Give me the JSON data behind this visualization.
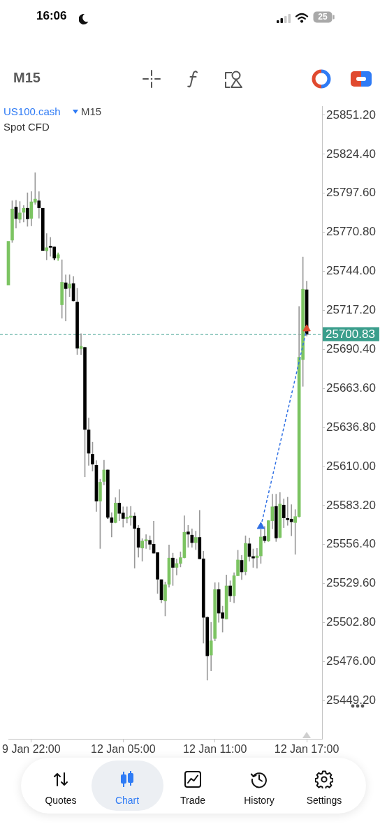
{
  "chart_data": {
    "type": "candlestick",
    "title": "US100.cash",
    "subtitle": "Spot CFD",
    "annotations": [
      "16:06",
      "25",
      "M15",
      "M15",
      "Quotes",
      "Chart",
      "Trade",
      "History",
      "Settings"
    ],
    "categories": [
      null,
      null,
      null,
      null,
      null,
      null,
      "9 Jan 22:00",
      null,
      null,
      null,
      null,
      null,
      null,
      null,
      null,
      null,
      null,
      null,
      null,
      null,
      null,
      null,
      null,
      null,
      null,
      null,
      null,
      null,
      null,
      null,
      "12 Jan 05:00",
      null,
      null,
      null,
      null,
      null,
      null,
      null,
      null,
      null,
      null,
      null,
      null,
      null,
      null,
      null,
      null,
      null,
      null,
      null,
      null,
      null,
      null,
      null,
      "12 Jan 11:00",
      null,
      null,
      null,
      null,
      null,
      null,
      null,
      null,
      null,
      null,
      null,
      null,
      null,
      null,
      null,
      null,
      null,
      null,
      null,
      null,
      null,
      null,
      null,
      "12 Jan 17:00",
      null,
      null,
      null,
      null
    ],
    "ohlc": [
      [
        25734.6,
        25764.6,
        25734.6,
        25764.6
      ],
      [
        25765.4,
        25792.4,
        25763.8,
        25786.8
      ],
      [
        25788.1,
        25792.7,
        25773.7,
        25780.2
      ],
      [
        25779.7,
        25791.9,
        25777.3,
        25784.1
      ],
      [
        25784.5,
        25789.2,
        25777.8,
        25787.3
      ],
      [
        25787.3,
        25797.9,
        25774.9,
        25780.0
      ],
      [
        25780.3,
        25798.7,
        25775.2,
        25791.7
      ],
      [
        25791.4,
        25811.7,
        25790.0,
        25793.6
      ],
      [
        25792.4,
        25798.7,
        25780.5,
        25787.6
      ],
      [
        25787.3,
        25787.3,
        25758.3,
        25758.3
      ],
      [
        25758.1,
        25769.9,
        25751.9,
        25760.2
      ],
      [
        25760.6,
        25767.3,
        25754.3,
        25760.4
      ],
      [
        25760.7,
        25760.7,
        25751.9,
        25753.1
      ],
      [
        25753.1,
        25756.7,
        25751.4,
        25755.4
      ],
      [
        25721.0,
        25751.9,
        25711.8,
        25736.4
      ],
      [
        25736.1,
        25741.6,
        25709.9,
        25732.1
      ],
      [
        25732.4,
        25741.6,
        25726.6,
        25735.3
      ],
      [
        25735.6,
        25740.5,
        25723.4,
        25723.7
      ],
      [
        25722.9,
        25732.4,
        25686.9,
        25691.2
      ],
      [
        25690.9,
        25701.2,
        25686.9,
        25692.5
      ],
      [
        25691.7,
        25692.0,
        25602.9,
        25635.4
      ],
      [
        25635.1,
        25643.3,
        25610.8,
        25619.1
      ],
      [
        25618.4,
        25626.7,
        25606.8,
        25611.6
      ],
      [
        25610.8,
        25614.0,
        25579.1,
        25586.2
      ],
      [
        25586.2,
        25601.3,
        25553.7,
        25599.2
      ],
      [
        25599.7,
        25614.3,
        25597.3,
        25607.6
      ],
      [
        25607.6,
        25607.6,
        25574.3,
        25575.1
      ],
      [
        25574.8,
        25578.3,
        25561.6,
        25571.5
      ],
      [
        25571.5,
        25588.6,
        25571.2,
        25584.9
      ],
      [
        25584.9,
        25594.2,
        25572.8,
        25577.8
      ],
      [
        25578.1,
        25582.3,
        25568.3,
        25574.3
      ],
      [
        25574.3,
        25582.3,
        25571.2,
        25575.1
      ],
      [
        25575.0,
        25582.6,
        25569.6,
        25575.9
      ],
      [
        25575.9,
        25578.3,
        25540.2,
        25567.5
      ],
      [
        25567.7,
        25569.6,
        25547.7,
        25554.5
      ],
      [
        25554.0,
        25560.4,
        25545.0,
        25558.8
      ],
      [
        25558.8,
        25563.2,
        25553.7,
        25559.7
      ],
      [
        25559.3,
        25562.4,
        25552.9,
        25556.6
      ],
      [
        25556.6,
        25572.4,
        25550.5,
        25550.5
      ],
      [
        25550.9,
        25550.9,
        25522.8,
        25532.6
      ],
      [
        25532.3,
        25532.3,
        25516.4,
        25518.5
      ],
      [
        25517.7,
        25530.7,
        25507.4,
        25528.8
      ],
      [
        25529.1,
        25556.1,
        25527.1,
        25547.1
      ],
      [
        25547.1,
        25550.5,
        25528.3,
        25540.7
      ],
      [
        25540.7,
        25546.6,
        25535.5,
        25543.4
      ],
      [
        25543.4,
        25551.4,
        25541.0,
        25547.4
      ],
      [
        25547.4,
        25576.2,
        25547.1,
        25564.8
      ],
      [
        25565.1,
        25569.6,
        25554.5,
        25563.5
      ],
      [
        25562.9,
        25567.2,
        25554.5,
        25557.7
      ],
      [
        25557.7,
        25565.6,
        25552.9,
        25561.3
      ],
      [
        25561.3,
        25579.9,
        25546.6,
        25546.6
      ],
      [
        25546.6,
        25551.8,
        25488.7,
        25506.4
      ],
      [
        25506.4,
        25506.9,
        25463.3,
        25480.0
      ],
      [
        25480.5,
        25503.0,
        25469.7,
        25490.3
      ],
      [
        25491.9,
        25530.2,
        25490.3,
        25525.5
      ],
      [
        25525.5,
        25530.2,
        25503.0,
        25509.3
      ],
      [
        25509.6,
        25514.1,
        25496.3,
        25505.8
      ],
      [
        25505.3,
        25535.5,
        25505.3,
        25528.0
      ],
      [
        25528.0,
        25531.5,
        25517.2,
        25521.2
      ],
      [
        25521.2,
        25537.1,
        25516.4,
        25535.0
      ],
      [
        25535.0,
        25552.5,
        25535.0,
        25545.8
      ],
      [
        25545.5,
        25549.0,
        25532.3,
        25537.6
      ],
      [
        25537.8,
        25562.4,
        25535.5,
        25557.2
      ],
      [
        25556.9,
        25560.9,
        25545.0,
        25548.2
      ],
      [
        25548.2,
        25553.4,
        25540.7,
        25547.1
      ],
      [
        25547.4,
        25553.7,
        25540.2,
        25548.6
      ],
      [
        25548.6,
        25566.7,
        25543.4,
        25561.6
      ],
      [
        25562.0,
        25568.8,
        25557.7,
        25559.1
      ],
      [
        25558.8,
        25572.8,
        25558.5,
        25572.8
      ],
      [
        25572.8,
        25591.0,
        25567.2,
        25582.3
      ],
      [
        25582.6,
        25591.0,
        25558.5,
        25560.9
      ],
      [
        25561.3,
        25592.1,
        25560.9,
        25584.2
      ],
      [
        25583.5,
        25587.8,
        25568.0,
        25574.7
      ],
      [
        25574.3,
        25588.9,
        25569.6,
        25573.4
      ],
      [
        25573.9,
        25583.8,
        25562.4,
        25572.0
      ],
      [
        25571.5,
        25580.4,
        25549.7,
        25575.6
      ],
      [
        25575.6,
        25719.9,
        25575.1,
        25685.0
      ],
      [
        25683.4,
        25753.8,
        25665.0,
        25731.7
      ],
      [
        25731.3,
        25737.2,
        25699.6,
        25700.83
      ],
      null,
      null,
      null,
      null
    ],
    "colors": [
      "#7cc462",
      "#7cc462",
      "#000000",
      "#7cc462",
      "#7cc462",
      "#000000",
      "#7cc462",
      "#7cc462",
      "#000000",
      "#000000",
      "#7cc462",
      "#000000",
      "#000000",
      "#7cc462",
      "#7cc462",
      "#000000",
      "#7cc462",
      "#000000",
      "#000000",
      "#7cc462",
      "#000000",
      "#000000",
      "#000000",
      "#000000",
      "#7cc462",
      "#7cc462",
      "#000000",
      "#000000",
      "#7cc462",
      "#000000",
      "#000000",
      "#7cc462",
      "#7cc462",
      "#000000",
      "#000000",
      "#7cc462",
      "#7cc462",
      "#000000",
      "#000000",
      "#000000",
      "#000000",
      "#7cc462",
      "#7cc462",
      "#000000",
      "#7cc462",
      "#7cc462",
      "#7cc462",
      "#000000",
      "#000000",
      "#7cc462",
      "#000000",
      "#000000",
      "#000000",
      "#7cc462",
      "#7cc462",
      "#000000",
      "#000000",
      "#7cc462",
      "#000000",
      "#7cc462",
      "#7cc462",
      "#000000",
      "#7cc462",
      "#000000",
      "#000000",
      "#7cc462",
      "#7cc462",
      "#000000",
      "#7cc462",
      "#7cc462",
      "#000000",
      "#7cc462",
      "#000000",
      "#000000",
      "#000000",
      "#7cc462",
      "#7cc462",
      "#7cc462",
      "#000000",
      null,
      null,
      null,
      null
    ],
    "series": [
      {
        "type": "line",
        "color": "#2f6fe4",
        "line_style": "dashed",
        "marker": "none",
        "values": [
          null,
          null,
          null,
          null,
          null,
          null,
          null,
          null,
          null,
          null,
          null,
          null,
          null,
          null,
          null,
          null,
          null,
          null,
          null,
          null,
          null,
          null,
          null,
          null,
          null,
          null,
          null,
          null,
          null,
          null,
          null,
          null,
          null,
          null,
          null,
          null,
          null,
          null,
          null,
          null,
          null,
          null,
          null,
          null,
          null,
          null,
          null,
          null,
          null,
          null,
          null,
          null,
          null,
          null,
          null,
          null,
          null,
          null,
          null,
          null,
          null,
          null,
          null,
          null,
          null,
          null,
          25568.8,
          null,
          null,
          null,
          null,
          null,
          null,
          null,
          null,
          null,
          null,
          null,
          25704.5,
          null,
          null,
          null,
          null
        ]
      },
      {
        "type": "scatter",
        "color": "#2f6fe4",
        "marker": "triangle",
        "values": [
          null,
          null,
          null,
          null,
          null,
          null,
          null,
          null,
          null,
          null,
          null,
          null,
          null,
          null,
          null,
          null,
          null,
          null,
          null,
          null,
          null,
          null,
          null,
          null,
          null,
          null,
          null,
          null,
          null,
          null,
          null,
          null,
          null,
          null,
          null,
          null,
          null,
          null,
          null,
          null,
          null,
          null,
          null,
          null,
          null,
          null,
          null,
          null,
          null,
          null,
          null,
          null,
          null,
          null,
          null,
          null,
          null,
          null,
          null,
          null,
          null,
          null,
          null,
          null,
          null,
          null,
          25568.8,
          null,
          null,
          null,
          null,
          null,
          null,
          null,
          null,
          null,
          null,
          null,
          null,
          null,
          null,
          null,
          null
        ]
      },
      {
        "type": "scatter",
        "color": "#e04a2f",
        "marker": "triangle",
        "values": [
          null,
          null,
          null,
          null,
          null,
          null,
          null,
          null,
          null,
          null,
          null,
          null,
          null,
          null,
          null,
          null,
          null,
          null,
          null,
          null,
          null,
          null,
          null,
          null,
          null,
          null,
          null,
          null,
          null,
          null,
          null,
          null,
          null,
          null,
          null,
          null,
          null,
          null,
          null,
          null,
          null,
          null,
          null,
          null,
          null,
          null,
          null,
          null,
          null,
          null,
          null,
          null,
          null,
          null,
          null,
          null,
          null,
          null,
          null,
          null,
          null,
          null,
          null,
          null,
          null,
          null,
          null,
          null,
          null,
          null,
          null,
          null,
          null,
          null,
          null,
          null,
          null,
          null,
          25704.5,
          null,
          null,
          null,
          null
        ]
      }
    ],
    "ylim": [
      25423,
      25857.4
    ],
    "yticks": [
      {
        "value": 25449.2,
        "label": "25449.20"
      },
      {
        "value": 25476,
        "label": "25476.00"
      },
      {
        "value": 25502.8,
        "label": "25502.80"
      },
      {
        "value": 25529.6,
        "label": "25529.60"
      },
      {
        "value": 25556.4,
        "label": "25556.40"
      },
      {
        "value": 25583.2,
        "label": "25583.20"
      },
      {
        "value": 25610,
        "label": "25610.00"
      },
      {
        "value": 25636.8,
        "label": "25636.80"
      },
      {
        "value": 25663.6,
        "label": "25663.60"
      },
      {
        "value": 25690.4,
        "label": "25690.40"
      },
      {
        "value": 25717.2,
        "label": "25717.20"
      },
      {
        "value": 25744,
        "label": "25744.00"
      },
      {
        "value": 25770.8,
        "label": "25770.80"
      },
      {
        "value": 25797.6,
        "label": "25797.60"
      },
      {
        "value": 25824.4,
        "label": "25824.40"
      },
      {
        "value": 25851.2,
        "label": "25851.20"
      }
    ],
    "ref_lines": [
      {
        "axis": "y",
        "value": 25700.83,
        "label": "25700.83",
        "color": "#3a9e8c",
        "line_style": "dashed"
      }
    ]
  }
}
